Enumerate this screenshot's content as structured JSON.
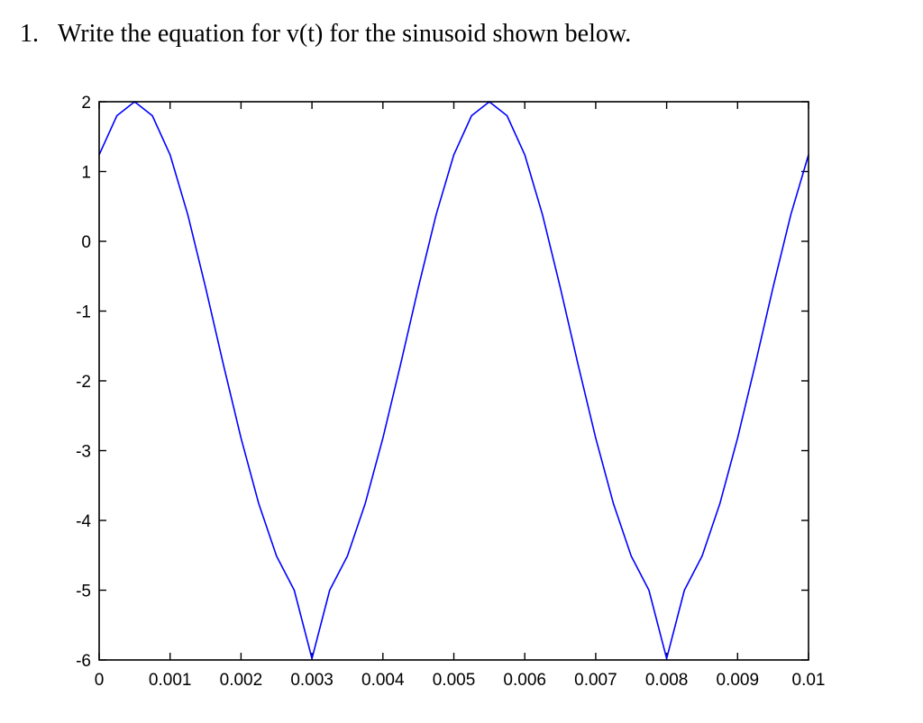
{
  "question": {
    "number": "1.",
    "text": "Write the equation for v(t) for the sinusoid shown below."
  },
  "chart_data": {
    "type": "line",
    "title": "",
    "xlabel": "",
    "ylabel": "",
    "xlim": [
      0,
      0.01
    ],
    "ylim": [
      -6,
      2
    ],
    "grid": false,
    "box": true,
    "x_ticks": [
      0,
      0.001,
      0.002,
      0.003,
      0.004,
      0.005,
      0.006,
      0.007,
      0.008,
      0.009,
      0.01
    ],
    "x_tick_labels": [
      "0",
      "0.001",
      "0.002",
      "0.003",
      "0.004",
      "0.005",
      "0.006",
      "0.007",
      "0.008",
      "0.009",
      "0.01"
    ],
    "y_ticks": [
      2,
      1,
      0,
      -1,
      -2,
      -3,
      -4,
      -5,
      -6
    ],
    "y_tick_labels": [
      "2",
      "1",
      "0",
      "-1",
      "-2",
      "-3",
      "-4",
      "-5",
      "-6"
    ],
    "line_color": "#0000ff",
    "series": [
      {
        "x": [
          0,
          0.00025,
          0.0005,
          0.00075,
          0.001,
          0.00125,
          0.0015,
          0.00175,
          0.002,
          0.00225,
          0.0025,
          0.00275,
          0.003,
          0.00325,
          0.0035,
          0.00375,
          0.004,
          0.00425,
          0.0045,
          0.00475,
          0.005,
          0.00525,
          0.0055,
          0.00575,
          0.006,
          0.00625,
          0.0065,
          0.00675,
          0.007,
          0.00725,
          0.0075,
          0.00775,
          0.008,
          0.00825,
          0.0085,
          0.00875,
          0.009,
          0.00925,
          0.0095,
          0.00975,
          0.01
        ],
        "values": [
          1.24,
          1.8,
          2.0,
          1.8,
          1.24,
          0.38,
          -0.66,
          -1.76,
          -2.82,
          -3.76,
          -4.51,
          -5.0,
          -5.98,
          -5.0,
          -4.51,
          -3.76,
          -2.82,
          -1.76,
          -0.66,
          0.38,
          1.24,
          1.8,
          2.0,
          1.8,
          1.24,
          0.38,
          -0.66,
          -1.76,
          -2.82,
          -3.76,
          -4.51,
          -5.0,
          -5.98,
          -5.0,
          -4.51,
          -3.76,
          -2.82,
          -1.76,
          -0.66,
          0.38,
          1.24
        ]
      }
    ]
  }
}
